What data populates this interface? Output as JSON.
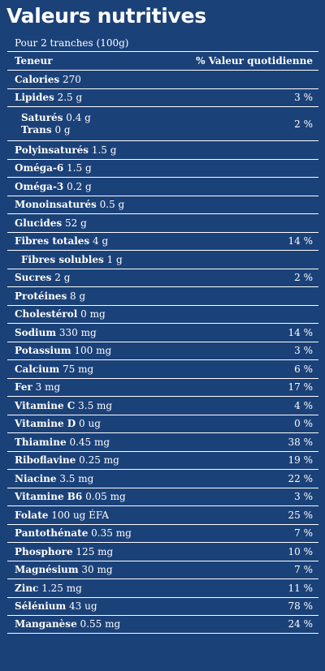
{
  "title": "Valeurs nutritives",
  "serving": "Pour 2 tranches (100g)",
  "header": {
    "left": "Teneur",
    "right": "% Valeur quotidienne"
  },
  "rows": [
    {
      "name": "Calories",
      "amount": "270",
      "dv": ""
    },
    {
      "name": "Lipides",
      "amount": "2.5 g",
      "dv": "3 %"
    },
    {
      "name": "Saturés",
      "amount": "0.4 g",
      "name2": "Trans",
      "amount2": "0 g",
      "dv": "2 %"
    },
    {
      "name": "Polyinsaturés",
      "amount": "1.5 g",
      "dv": ""
    },
    {
      "name": "Oméga-6",
      "amount": "1.5 g",
      "dv": ""
    },
    {
      "name": "Oméga-3",
      "amount": "0.2 g",
      "dv": ""
    },
    {
      "name": "Monoinsaturés",
      "amount": "0.5 g",
      "dv": ""
    },
    {
      "name": "Glucides",
      "amount": "52 g",
      "dv": ""
    },
    {
      "name": "Fibres totales",
      "amount": "4 g",
      "dv": "14 %"
    },
    {
      "name": "Fibres solubles",
      "amount": "1 g",
      "dv": ""
    },
    {
      "name": "Sucres",
      "amount": "2 g",
      "dv": "2 %"
    },
    {
      "name": "Protéines",
      "amount": "8 g",
      "dv": ""
    },
    {
      "name": "Cholestérol",
      "amount": "0 mg",
      "dv": ""
    },
    {
      "name": "Sodium",
      "amount": "330 mg",
      "dv": "14 %"
    },
    {
      "name": "Potassium",
      "amount": "100 mg",
      "dv": "3 %"
    },
    {
      "name": "Calcium",
      "amount": "75 mg",
      "dv": "6 %"
    },
    {
      "name": "Fer",
      "amount": "3 mg",
      "dv": "17 %"
    },
    {
      "name": "Vitamine C",
      "amount": "3.5 mg",
      "dv": "4 %"
    },
    {
      "name": "Vitamine D",
      "amount": "0 ug",
      "dv": "0 %"
    },
    {
      "name": "Thiamine",
      "amount": "0.45 mg",
      "dv": "38 %"
    },
    {
      "name": "Riboflavine",
      "amount": "0.25 mg",
      "dv": "19 %"
    },
    {
      "name": "Niacine",
      "amount": "3.5 mg",
      "dv": "22 %"
    },
    {
      "name": "Vitamine B6",
      "amount": "0.05 mg",
      "dv": "3 %"
    },
    {
      "name": "Folate",
      "amount": "100 ug ÉFA",
      "dv": "25 %"
    },
    {
      "name": "Pantothénate",
      "amount": "0.35 mg",
      "dv": "7 %"
    },
    {
      "name": "Phosphore",
      "amount": "125 mg",
      "dv": "10 %"
    },
    {
      "name": "Magnésium",
      "amount": "30 mg",
      "dv": "7 %"
    },
    {
      "name": "Zinc",
      "amount": "1.25 mg",
      "dv": "11 %"
    },
    {
      "name": "Sélénium",
      "amount": "43 ug",
      "dv": "78 %"
    },
    {
      "name": "Manganèse",
      "amount": "0.55 mg",
      "dv": "24 %"
    }
  ]
}
